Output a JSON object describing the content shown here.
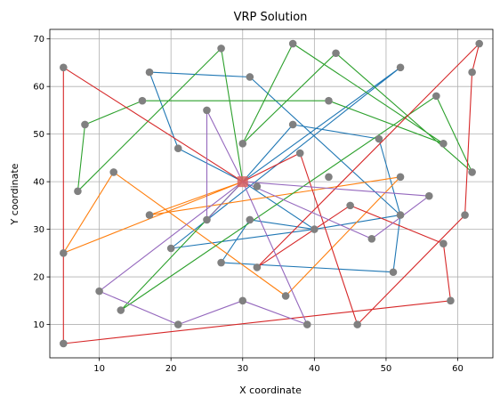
{
  "chart_data": {
    "type": "scatter",
    "title": "VRP Solution",
    "xlabel": "X coordinate",
    "ylabel": "Y coordinate",
    "xlim": [
      3.1,
      64.9
    ],
    "ylim": [
      3.0,
      72.0
    ],
    "x_ticks": [
      10,
      20,
      30,
      40,
      50,
      60
    ],
    "y_ticks": [
      10,
      20,
      30,
      40,
      50,
      60,
      70
    ],
    "grid": true,
    "depot": {
      "x": 30,
      "y": 40,
      "color": "#d9625f"
    },
    "customers": [
      {
        "x": 5,
        "y": 64
      },
      {
        "x": 5,
        "y": 25
      },
      {
        "x": 5,
        "y": 6
      },
      {
        "x": 7,
        "y": 38
      },
      {
        "x": 8,
        "y": 52
      },
      {
        "x": 10,
        "y": 17
      },
      {
        "x": 12,
        "y": 42
      },
      {
        "x": 13,
        "y": 13
      },
      {
        "x": 16,
        "y": 57
      },
      {
        "x": 17,
        "y": 63
      },
      {
        "x": 17,
        "y": 33
      },
      {
        "x": 20,
        "y": 26
      },
      {
        "x": 21,
        "y": 47
      },
      {
        "x": 21,
        "y": 10
      },
      {
        "x": 25,
        "y": 55
      },
      {
        "x": 25,
        "y": 32
      },
      {
        "x": 27,
        "y": 68
      },
      {
        "x": 27,
        "y": 23
      },
      {
        "x": 30,
        "y": 48
      },
      {
        "x": 30,
        "y": 15
      },
      {
        "x": 31,
        "y": 62
      },
      {
        "x": 31,
        "y": 32
      },
      {
        "x": 32,
        "y": 39
      },
      {
        "x": 32,
        "y": 22
      },
      {
        "x": 36,
        "y": 16
      },
      {
        "x": 37,
        "y": 69
      },
      {
        "x": 37,
        "y": 52
      },
      {
        "x": 38,
        "y": 46
      },
      {
        "x": 39,
        "y": 10
      },
      {
        "x": 40,
        "y": 30
      },
      {
        "x": 42,
        "y": 57
      },
      {
        "x": 42,
        "y": 41
      },
      {
        "x": 43,
        "y": 67
      },
      {
        "x": 45,
        "y": 35
      },
      {
        "x": 46,
        "y": 10
      },
      {
        "x": 48,
        "y": 28
      },
      {
        "x": 49,
        "y": 49
      },
      {
        "x": 51,
        "y": 21
      },
      {
        "x": 52,
        "y": 64
      },
      {
        "x": 52,
        "y": 41
      },
      {
        "x": 52,
        "y": 33
      },
      {
        "x": 56,
        "y": 37
      },
      {
        "x": 57,
        "y": 58
      },
      {
        "x": 58,
        "y": 48
      },
      {
        "x": 58,
        "y": 27
      },
      {
        "x": 59,
        "y": 15
      },
      {
        "x": 61,
        "y": 33
      },
      {
        "x": 62,
        "y": 63
      },
      {
        "x": 62,
        "y": 42
      },
      {
        "x": 63,
        "y": 69
      }
    ],
    "series": [
      {
        "color": "#1f77b4",
        "points": [
          [
            30,
            40
          ],
          [
            21,
            47
          ],
          [
            17,
            63
          ],
          [
            31,
            62
          ],
          [
            52,
            33
          ],
          [
            51,
            21
          ],
          [
            27,
            23
          ],
          [
            31,
            32
          ],
          [
            40,
            30
          ],
          [
            20,
            26
          ],
          [
            52,
            64
          ],
          [
            30,
            40
          ]
        ]
      },
      {
        "color": "#1f77b4",
        "points": [
          [
            30,
            40
          ],
          [
            37,
            52
          ],
          [
            49,
            49
          ],
          [
            52,
            33
          ],
          [
            40,
            30
          ],
          [
            30,
            40
          ]
        ]
      },
      {
        "color": "#ff7f0e",
        "points": [
          [
            30,
            40
          ],
          [
            5,
            25
          ],
          [
            12,
            42
          ],
          [
            36,
            16
          ],
          [
            52,
            41
          ],
          [
            17,
            33
          ],
          [
            30,
            40
          ]
        ]
      },
      {
        "color": "#2ca02c",
        "points": [
          [
            30,
            40
          ],
          [
            27,
            68
          ],
          [
            7,
            38
          ],
          [
            8,
            52
          ],
          [
            16,
            57
          ],
          [
            42,
            57
          ],
          [
            58,
            48
          ],
          [
            37,
            69
          ],
          [
            30,
            48
          ],
          [
            43,
            67
          ],
          [
            62,
            42
          ],
          [
            57,
            58
          ],
          [
            13,
            13
          ],
          [
            30,
            40
          ]
        ]
      },
      {
        "color": "#d62728",
        "points": [
          [
            30,
            40
          ],
          [
            38,
            46
          ],
          [
            46,
            10
          ],
          [
            61,
            33
          ],
          [
            62,
            63
          ],
          [
            63,
            69
          ],
          [
            32,
            22
          ],
          [
            45,
            35
          ],
          [
            58,
            27
          ],
          [
            59,
            15
          ],
          [
            5,
            6
          ],
          [
            5,
            64
          ],
          [
            30,
            40
          ]
        ]
      },
      {
        "color": "#9467bd",
        "points": [
          [
            30,
            40
          ],
          [
            25,
            55
          ],
          [
            25,
            32
          ],
          [
            30,
            40
          ],
          [
            39,
            10
          ],
          [
            30,
            15
          ],
          [
            21,
            10
          ],
          [
            10,
            17
          ],
          [
            30,
            40
          ]
        ]
      },
      {
        "color": "#9467bd",
        "points": [
          [
            30,
            40
          ],
          [
            48,
            28
          ],
          [
            56,
            37
          ],
          [
            30,
            40
          ]
        ]
      }
    ]
  }
}
